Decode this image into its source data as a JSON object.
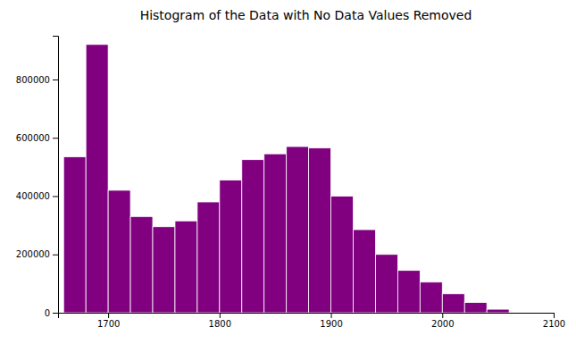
{
  "chart_data": {
    "type": "histogram",
    "title": "Histogram of the Data with No Data Values Removed",
    "color": "#800080",
    "bins": [
      1660,
      1680,
      1700,
      1720,
      1740,
      1760,
      1780,
      1800,
      1820,
      1840,
      1860,
      1880,
      1900,
      1920,
      1940,
      1960,
      1980,
      2000,
      2020,
      2040,
      2060,
      2080,
      2100
    ],
    "values": [
      535000,
      920000,
      420000,
      330000,
      295000,
      315000,
      380000,
      455000,
      525000,
      545000,
      570000,
      565000,
      400000,
      285000,
      200000,
      145000,
      105000,
      65000,
      35000,
      12000,
      0,
      0
    ],
    "xlim": [
      1655,
      2100
    ],
    "ylim": [
      0,
      950000
    ],
    "xticks": [
      1700,
      1800,
      1900,
      2000,
      2100
    ],
    "yticks": [
      0,
      200000,
      400000,
      600000,
      800000
    ]
  }
}
